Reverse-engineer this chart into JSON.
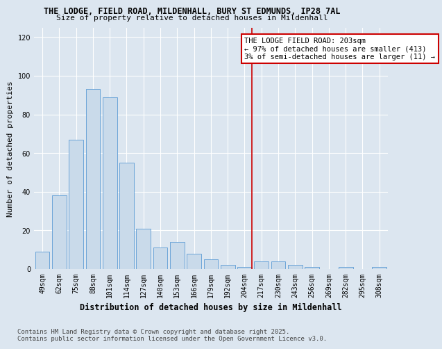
{
  "title_line1": "THE LODGE, FIELD ROAD, MILDENHALL, BURY ST EDMUNDS, IP28 7AL",
  "title_line2": "Size of property relative to detached houses in Mildenhall",
  "xlabel": "Distribution of detached houses by size in Mildenhall",
  "ylabel": "Number of detached properties",
  "categories": [
    "49sqm",
    "62sqm",
    "75sqm",
    "88sqm",
    "101sqm",
    "114sqm",
    "127sqm",
    "140sqm",
    "153sqm",
    "166sqm",
    "179sqm",
    "192sqm",
    "204sqm",
    "217sqm",
    "230sqm",
    "243sqm",
    "256sqm",
    "269sqm",
    "282sqm",
    "295sqm",
    "308sqm"
  ],
  "values": [
    9,
    38,
    67,
    93,
    89,
    55,
    21,
    11,
    14,
    8,
    5,
    2,
    1,
    4,
    4,
    2,
    1,
    0,
    1,
    0,
    1
  ],
  "bar_color": "#c9daea",
  "bar_edge_color": "#5b9bd5",
  "vline_x_index": 12,
  "vline_color": "#cc0000",
  "annotation_title": "THE LODGE FIELD ROAD: 203sqm",
  "annotation_line2": "← 97% of detached houses are smaller (413)",
  "annotation_line3": "3% of semi-detached houses are larger (11) →",
  "annotation_box_color": "#ffffff",
  "annotation_box_edge": "#cc0000",
  "ylim": [
    0,
    125
  ],
  "yticks": [
    0,
    20,
    40,
    60,
    80,
    100,
    120
  ],
  "background_color": "#dce6f0",
  "footer_line1": "Contains HM Land Registry data © Crown copyright and database right 2025.",
  "footer_line2": "Contains public sector information licensed under the Open Government Licence v3.0.",
  "title_fontsize": 8.5,
  "title2_fontsize": 8,
  "axis_label_fontsize": 8,
  "xlabel_fontsize": 8.5,
  "tick_fontsize": 7,
  "footer_fontsize": 6.5,
  "annotation_fontsize": 7.5,
  "grid_color": "#ffffff",
  "spine_color": "#aaaaaa"
}
